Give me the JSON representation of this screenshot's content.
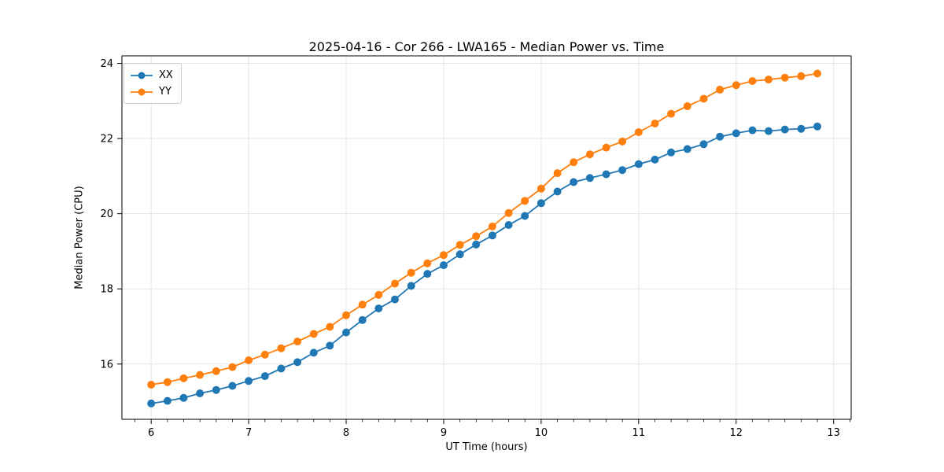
{
  "chart_data": {
    "type": "line",
    "title": "2025-04-16 - Cor 266 - LWA165 - Median Power vs. Time",
    "xlabel": "UT Time (hours)",
    "ylabel": "Median Power (CPU)",
    "xlim": [
      5.7,
      13.18
    ],
    "ylim": [
      14.53,
      24.2
    ],
    "xticks": [
      6,
      7,
      8,
      9,
      10,
      11,
      12,
      13
    ],
    "yticks": [
      16,
      18,
      20,
      22,
      24
    ],
    "x_minor_tick_step": 0.16667,
    "grid": true,
    "legend_position": "upper left",
    "colors": {
      "grid": "#e5e5e5",
      "spine": "#000000",
      "background": "#ffffff"
    },
    "x": [
      6.0,
      6.167,
      6.333,
      6.5,
      6.667,
      6.833,
      7.0,
      7.167,
      7.333,
      7.5,
      7.667,
      7.833,
      8.0,
      8.167,
      8.333,
      8.5,
      8.667,
      8.833,
      9.0,
      9.167,
      9.333,
      9.5,
      9.667,
      9.833,
      10.0,
      10.167,
      10.333,
      10.5,
      10.667,
      10.833,
      11.0,
      11.167,
      11.333,
      11.5,
      11.667,
      11.833,
      12.0,
      12.167,
      12.333,
      12.5,
      12.667,
      12.833
    ],
    "series": [
      {
        "name": "XX",
        "color": "#1f77b4",
        "marker": "o",
        "values": [
          14.95,
          15.02,
          15.1,
          15.22,
          15.31,
          15.42,
          15.55,
          15.68,
          15.88,
          16.05,
          16.3,
          16.49,
          16.84,
          17.17,
          17.48,
          17.72,
          18.08,
          18.4,
          18.63,
          18.92,
          19.18,
          19.42,
          19.7,
          19.94,
          20.28,
          20.59,
          20.84,
          20.95,
          21.05,
          21.16,
          21.32,
          21.44,
          21.63,
          21.72,
          21.85,
          22.05,
          22.14,
          22.22,
          22.2,
          22.24,
          22.26,
          22.32
        ]
      },
      {
        "name": "YY",
        "color": "#ff7f0e",
        "marker": "o",
        "values": [
          15.45,
          15.52,
          15.62,
          15.71,
          15.81,
          15.92,
          16.1,
          16.25,
          16.42,
          16.6,
          16.8,
          16.99,
          17.3,
          17.58,
          17.84,
          18.14,
          18.43,
          18.68,
          18.9,
          19.17,
          19.4,
          19.66,
          20.02,
          20.34,
          20.67,
          21.08,
          21.37,
          21.58,
          21.76,
          21.92,
          22.17,
          22.4,
          22.66,
          22.86,
          23.06,
          23.3,
          23.42,
          23.53,
          23.57,
          23.62,
          23.66,
          23.73
        ]
      }
    ]
  }
}
